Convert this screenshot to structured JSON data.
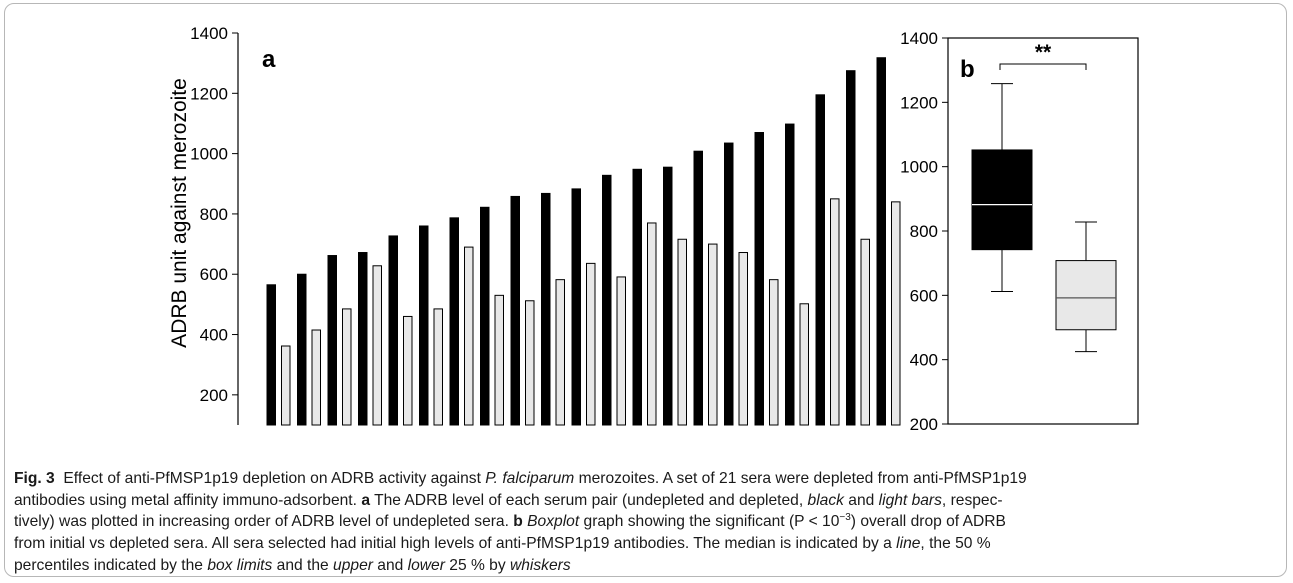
{
  "chart_data": [
    {
      "panel_label": "a",
      "type": "bar",
      "ylabel": "ADRB unit against merozoite",
      "ylim": [
        100,
        1400
      ],
      "yticks": [
        200,
        400,
        600,
        800,
        1000,
        1200,
        1400
      ],
      "colors": {
        "undepleted": "#000000",
        "depleted": "#e8e8e8"
      },
      "series": [
        {
          "values": [
            565,
            600,
            662,
            672,
            727,
            760,
            787,
            822,
            858,
            868,
            883,
            928,
            948,
            955,
            1008,
            1035,
            1070,
            1098,
            1195,
            1275,
            1318
          ]
        },
        {
          "values": [
            362,
            415,
            485,
            628,
            460,
            485,
            690,
            530,
            512,
            582,
            636,
            591,
            770,
            716,
            700,
            672,
            582,
            502,
            850,
            716,
            840
          ]
        }
      ]
    },
    {
      "panel_label": "b",
      "type": "boxplot",
      "ylim": [
        200,
        1400
      ],
      "yticks": [
        200,
        400,
        600,
        800,
        1000,
        1200,
        1400
      ],
      "significance": "**",
      "boxes": [
        {
          "fill": "#000000",
          "median_color": "#ffffff",
          "whisker_low": 612,
          "q1": 742,
          "median": 882,
          "q3": 1052,
          "whisker_high": 1258
        },
        {
          "fill": "#e8e8e8",
          "median_color": "#555555",
          "whisker_low": 425,
          "q1": 493,
          "median": 592,
          "q3": 708,
          "whisker_high": 828
        }
      ]
    }
  ],
  "caption": {
    "fig_label": "Fig. 3",
    "line1": "Effect of anti-PfMSP1p19 depletion on ADRB activity against",
    "line1_italic": "P. falciparum",
    "line1_end": "merozoites. A set of 21 sera were depleted from anti-PfMSP1p19",
    "line2_a": "antibodies using metal affinity immuno-adsorbent.",
    "label_a": "a",
    "line2_b": "The ADRB level of each serum pair (undepleted and depleted,",
    "word_black": "black",
    "word_and": "and",
    "word_light_bars": "light bars",
    "line2_end": ", respec-",
    "line3_a": "tively) was plotted in increasing order of ADRB level of undepleted sera.",
    "label_b": "b",
    "word_boxplot": "Boxplot",
    "line3_b": "graph showing the significant (P < 10",
    "line3_exp": "−3",
    "line3_c": ") overall drop of ADRB",
    "line4": "from initial vs depleted sera. All sera selected had initial high levels of anti-PfMSP1p19 antibodies. The median is indicated by a",
    "word_line": "line",
    "line4_end": ", the 50 %",
    "line5_a": "percentiles indicated by the",
    "word_box_limits": "box limits",
    "line5_b": "and the",
    "word_upper": "upper",
    "word_and2": "and",
    "word_lower": "lower",
    "line5_c": "25 % by",
    "word_whiskers": "whiskers"
  }
}
